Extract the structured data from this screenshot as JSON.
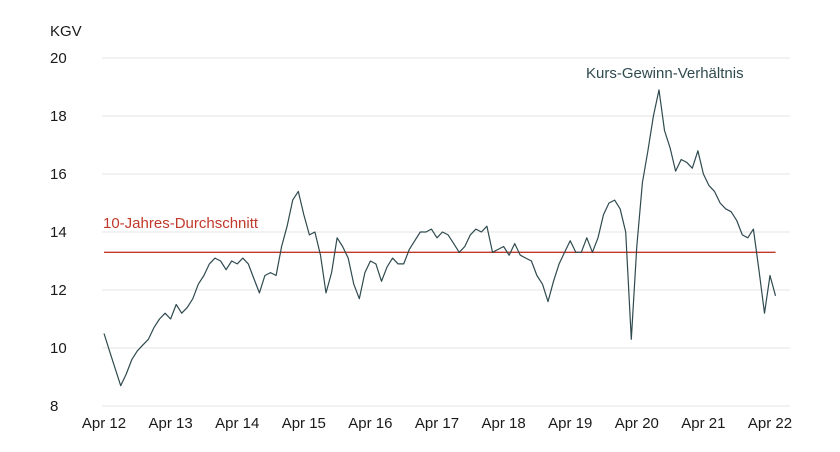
{
  "chart_data": {
    "type": "line",
    "ylabel": "KGV",
    "ylim": [
      8,
      20
    ],
    "yticks": [
      8,
      10,
      12,
      14,
      16,
      18,
      20
    ],
    "xlim": [
      "2012-04",
      "2022-04"
    ],
    "xticks": [
      "Apr 12",
      "Apr 13",
      "Apr 14",
      "Apr 15",
      "Apr 16",
      "Apr 17",
      "Apr 18",
      "Apr 19",
      "Apr 20",
      "Apr 21",
      "Apr 22"
    ],
    "grid": "horizontal",
    "colors": {
      "series": "#2f4a4f",
      "average": "#c0392b",
      "grid": "#e6e6e6"
    },
    "series": [
      {
        "name": "Kurs-Gewinn-Verhältnis",
        "color": "#2f4a4f",
        "x": [
          "2012-04",
          "2012-05",
          "2012-06",
          "2012-07",
          "2012-08",
          "2012-09",
          "2012-10",
          "2012-11",
          "2012-12",
          "2013-01",
          "2013-02",
          "2013-03",
          "2013-04",
          "2013-05",
          "2013-06",
          "2013-07",
          "2013-08",
          "2013-09",
          "2013-10",
          "2013-11",
          "2013-12",
          "2014-01",
          "2014-02",
          "2014-03",
          "2014-04",
          "2014-05",
          "2014-06",
          "2014-07",
          "2014-08",
          "2014-09",
          "2014-10",
          "2014-11",
          "2014-12",
          "2015-01",
          "2015-02",
          "2015-03",
          "2015-04",
          "2015-05",
          "2015-06",
          "2015-07",
          "2015-08",
          "2015-09",
          "2015-10",
          "2015-11",
          "2015-12",
          "2016-01",
          "2016-02",
          "2016-03",
          "2016-04",
          "2016-05",
          "2016-06",
          "2016-07",
          "2016-08",
          "2016-09",
          "2016-10",
          "2016-11",
          "2016-12",
          "2017-01",
          "2017-02",
          "2017-03",
          "2017-04",
          "2017-05",
          "2017-06",
          "2017-07",
          "2017-08",
          "2017-09",
          "2017-10",
          "2017-11",
          "2017-12",
          "2018-01",
          "2018-02",
          "2018-03",
          "2018-04",
          "2018-05",
          "2018-06",
          "2018-07",
          "2018-08",
          "2018-09",
          "2018-10",
          "2018-11",
          "2018-12",
          "2019-01",
          "2019-02",
          "2019-03",
          "2019-04",
          "2019-05",
          "2019-06",
          "2019-07",
          "2019-08",
          "2019-09",
          "2019-10",
          "2019-11",
          "2019-12",
          "2020-01",
          "2020-02",
          "2020-03",
          "2020-04",
          "2020-05",
          "2020-06",
          "2020-07",
          "2020-08",
          "2020-09",
          "2020-10",
          "2020-11",
          "2020-12",
          "2021-01",
          "2021-02",
          "2021-03",
          "2021-04",
          "2021-05",
          "2021-06",
          "2021-07",
          "2021-08",
          "2021-09",
          "2021-10",
          "2021-11",
          "2021-12",
          "2022-01",
          "2022-02",
          "2022-03",
          "2022-04",
          "2022-05"
        ],
        "values": [
          10.5,
          9.9,
          9.3,
          8.7,
          9.1,
          9.6,
          9.9,
          10.1,
          10.3,
          10.7,
          11.0,
          11.2,
          11.0,
          11.5,
          11.2,
          11.4,
          11.7,
          12.2,
          12.5,
          12.9,
          13.1,
          13.0,
          12.7,
          13.0,
          12.9,
          13.1,
          12.9,
          12.4,
          11.9,
          12.5,
          12.6,
          12.5,
          13.5,
          14.2,
          15.1,
          15.4,
          14.6,
          13.9,
          14.0,
          13.2,
          11.9,
          12.6,
          13.8,
          13.5,
          13.1,
          12.2,
          11.7,
          12.6,
          13.0,
          12.9,
          12.3,
          12.8,
          13.1,
          12.9,
          12.9,
          13.4,
          13.7,
          14.0,
          14.0,
          14.1,
          13.8,
          14.0,
          13.9,
          13.6,
          13.3,
          13.5,
          13.9,
          14.1,
          14.0,
          14.2,
          13.3,
          13.4,
          13.5,
          13.2,
          13.6,
          13.2,
          13.1,
          13.0,
          12.5,
          12.2,
          11.6,
          12.3,
          12.9,
          13.3,
          13.7,
          13.3,
          13.3,
          13.8,
          13.3,
          13.8,
          14.6,
          15.0,
          15.1,
          14.8,
          14.0,
          10.3,
          13.5,
          15.7,
          16.8,
          18.0,
          18.9,
          17.5,
          16.9,
          16.1,
          16.5,
          16.4,
          16.2,
          16.8,
          16.0,
          15.6,
          15.4,
          15.0,
          14.8,
          14.7,
          14.4,
          13.9,
          13.8,
          14.1,
          12.7,
          11.2,
          12.5,
          11.8
        ]
      },
      {
        "name": "10-Jahres-Durchschnitt",
        "color": "#c0392b",
        "x": [
          "2012-04",
          "2022-05"
        ],
        "values": [
          13.3,
          13.3
        ]
      }
    ],
    "annotations": [
      {
        "text": "Kurs-Gewinn-Verhältnis",
        "series": 0
      },
      {
        "text": "10-Jahres-Durchschnitt",
        "series": 1
      }
    ]
  }
}
